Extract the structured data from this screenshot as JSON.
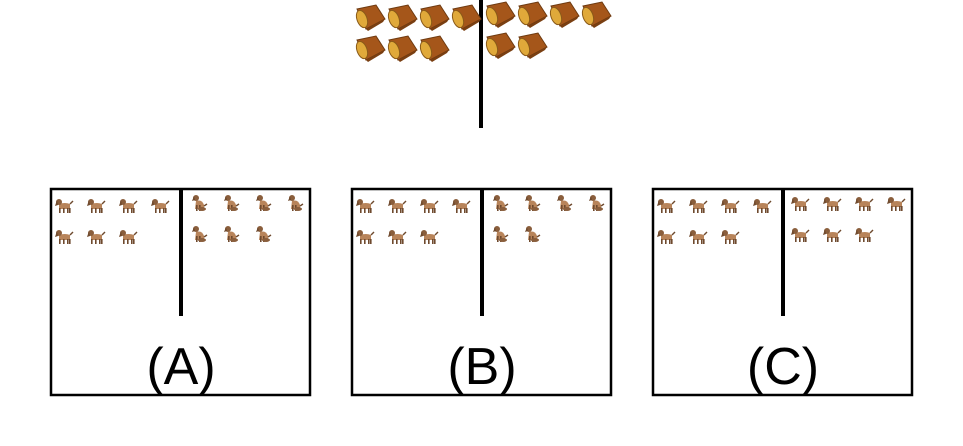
{
  "prompt": {
    "left_count": 7,
    "right_count": 6,
    "item_icon": "log-icon",
    "colors": {
      "wood": "#a5561a",
      "wood_dark": "#6e3a10",
      "end_grain": "#e0a93a"
    }
  },
  "options": [
    {
      "label": "(A)",
      "left_count": 7,
      "right_count": 7,
      "left_icon": "dog-standing-icon",
      "right_icon": "dog-sitting-icon"
    },
    {
      "label": "(B)",
      "left_count": 7,
      "right_count": 6,
      "left_icon": "dog-standing-icon",
      "right_icon": "dog-sitting-icon"
    },
    {
      "label": "(C)",
      "left_count": 7,
      "right_count": 7,
      "left_icon": "dog-standing-icon",
      "right_icon": "dog-standing-icon"
    }
  ],
  "colors": {
    "dog": "#b8845a",
    "dog_dark": "#6f4a2e",
    "border": "#000000"
  }
}
